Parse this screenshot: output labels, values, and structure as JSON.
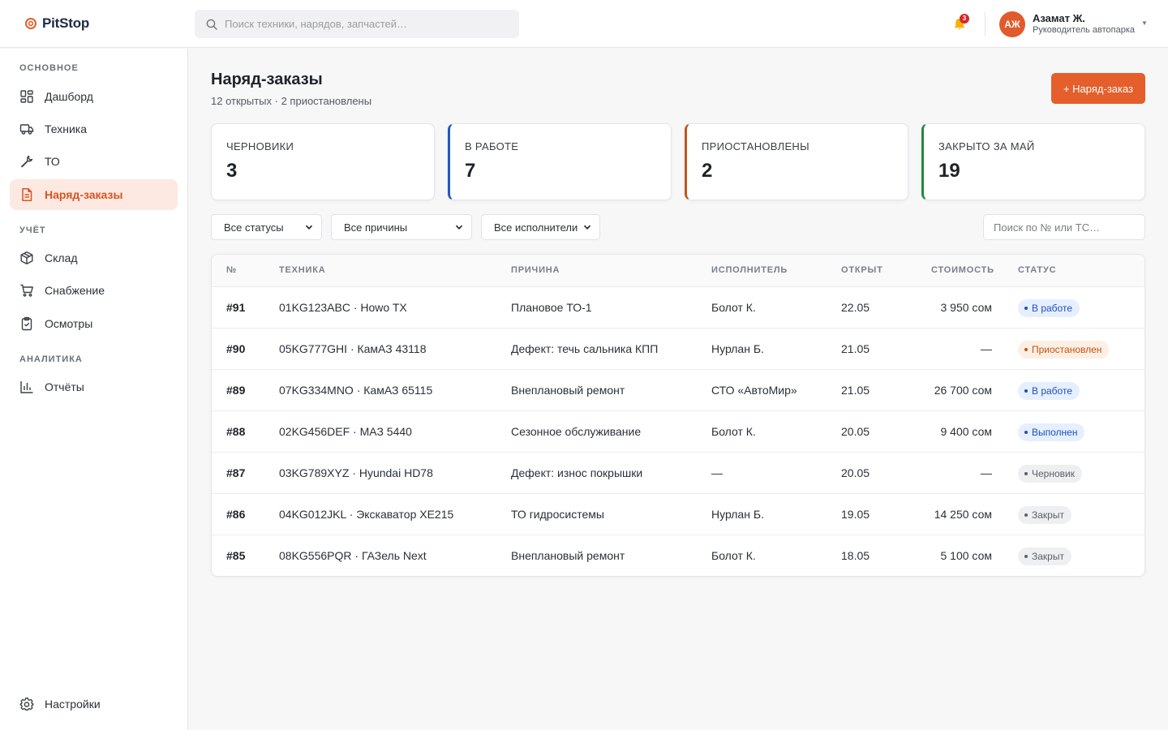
{
  "app": {
    "name": "PitStop"
  },
  "topbar": {
    "search_placeholder": "Поиск техники, нарядов, запчастей…",
    "notifications_count": "3",
    "user": {
      "initials": "АЖ",
      "name": "Азамат Ж.",
      "role": "Руководитель автопарка"
    }
  },
  "sidebar": {
    "sections": [
      {
        "title": "ОСНОВНОЕ",
        "items": [
          {
            "label": "Дашборд",
            "icon": "dashboard-icon",
            "active": false
          },
          {
            "label": "Техника",
            "icon": "truck-icon",
            "active": false
          },
          {
            "label": "ТО",
            "icon": "wrench-icon",
            "active": false
          },
          {
            "label": "Наряд-заказы",
            "icon": "document-icon",
            "active": true
          }
        ]
      },
      {
        "title": "УЧЁТ",
        "items": [
          {
            "label": "Склад",
            "icon": "box-icon",
            "active": false
          },
          {
            "label": "Снабжение",
            "icon": "cart-icon",
            "active": false
          },
          {
            "label": "Осмотры",
            "icon": "clipboard-icon",
            "active": false
          }
        ]
      },
      {
        "title": "АНАЛИТИКА",
        "items": [
          {
            "label": "Отчёты",
            "icon": "chart-icon",
            "active": false
          }
        ]
      }
    ],
    "settings_label": "Настройки"
  },
  "page": {
    "title": "Наряд-заказы",
    "subtitle": "12 открытых · 2 приостановлены",
    "new_button": "+ Наряд-заказ"
  },
  "stats": [
    {
      "label": "ЧЕРНОВИКИ",
      "value": "3",
      "accent": null
    },
    {
      "label": "В РАБОТЕ",
      "value": "7",
      "accent": "#2456c4"
    },
    {
      "label": "ПРИОСТАНОВЛЕНЫ",
      "value": "2",
      "accent": "#c2561a"
    },
    {
      "label": "ЗАКРЫТО ЗА МАЙ",
      "value": "19",
      "accent": "#23893f"
    }
  ],
  "filters": {
    "status": "Все статусы",
    "reason": "Все причины",
    "executor": "Все исполнители",
    "search_placeholder": "Поиск по № или ТС…"
  },
  "table": {
    "columns": [
      "№",
      "ТЕХНИКА",
      "ПРИЧИНА",
      "ИСПОЛНИТЕЛЬ",
      "ОТКРЫТ",
      "СТОИМОСТЬ",
      "СТАТУС"
    ],
    "rows": [
      {
        "id": "#91",
        "vehicle": "01KG123ABC · Howo TX",
        "reason": "Плановое ТО-1",
        "executor": "Болот К.",
        "opened": "22.05",
        "cost": "3 950 сом",
        "status": "В работе",
        "status_color": "blue"
      },
      {
        "id": "#90",
        "vehicle": "05KG777GHI · КамАЗ 43118",
        "reason": "Дефект: течь сальника КПП",
        "executor": "Нурлан Б.",
        "opened": "21.05",
        "cost": "—",
        "status": "Приостановлен",
        "status_color": "orange"
      },
      {
        "id": "#89",
        "vehicle": "07KG334MNO · КамАЗ 65115",
        "reason": "Внеплановый ремонт",
        "executor": "СТО «АвтоМир»",
        "opened": "21.05",
        "cost": "26 700 сом",
        "status": "В работе",
        "status_color": "blue"
      },
      {
        "id": "#88",
        "vehicle": "02KG456DEF · МАЗ 5440",
        "reason": "Сезонное обслуживание",
        "executor": "Болот К.",
        "opened": "20.05",
        "cost": "9 400 сом",
        "status": "Выполнен",
        "status_color": "blue"
      },
      {
        "id": "#87",
        "vehicle": "03KG789XYZ · Hyundai HD78",
        "reason": "Дефект: износ покрышки",
        "executor": "—",
        "opened": "20.05",
        "cost": "—",
        "status": "Черновик",
        "status_color": "gray"
      },
      {
        "id": "#86",
        "vehicle": "04KG012JKL · Экскаватор XE215",
        "reason": "ТО гидросистемы",
        "executor": "Нурлан Б.",
        "opened": "19.05",
        "cost": "14 250 сом",
        "status": "Закрыт",
        "status_color": "gray"
      },
      {
        "id": "#85",
        "vehicle": "08KG556PQR · ГАЗель Next",
        "reason": "Внеплановый ремонт",
        "executor": "Болот К.",
        "opened": "18.05",
        "cost": "5 100 сом",
        "status": "Закрыт",
        "status_color": "gray"
      }
    ]
  },
  "colors": {
    "brand": "#e45f2b",
    "active_bg": "#fde9e1"
  }
}
